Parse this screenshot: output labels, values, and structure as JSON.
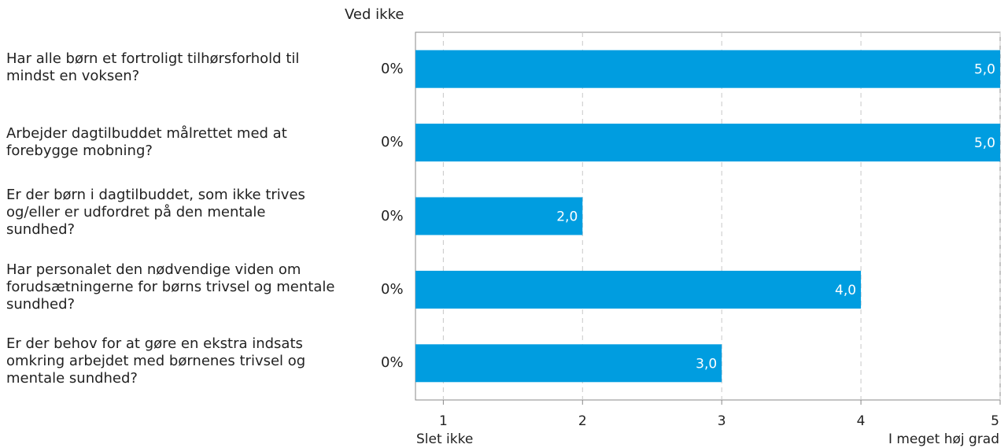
{
  "chart_data": {
    "type": "bar",
    "orientation": "horizontal",
    "categories": [
      "Har alle børn et fortroligt tilhørsforhold til mindst en voksen?",
      "Arbejder dagtilbuddet målrettet med at forebygge mobning?",
      "Er der børn i dagtilbuddet, som ikke trives og/eller er udfordret på den mentale sundhed?",
      "Har personalet den nødvendige viden om forudsætningerne for børns trivsel og mentale sundhed?",
      "Er der behov for at gøre en ekstra indsats omkring arbejdet med børnenes trivsel og mentale sundhed?"
    ],
    "values": [
      5.0,
      5.0,
      2.0,
      4.0,
      3.0
    ],
    "value_labels": [
      "5,0",
      "5,0",
      "2,0",
      "4,0",
      "3,0"
    ],
    "ved_ikke_header": "Ved ikke",
    "ved_ikke_values": [
      "0%",
      "0%",
      "0%",
      "0%",
      "0%"
    ],
    "xlim": [
      0.8,
      5
    ],
    "xticks": [
      "1",
      "2",
      "3",
      "4",
      "5"
    ],
    "x_low_label": "Slet ikke",
    "x_high_label": "I meget høj grad",
    "grid": "vertical dashed",
    "bar_color": "#009de0"
  }
}
